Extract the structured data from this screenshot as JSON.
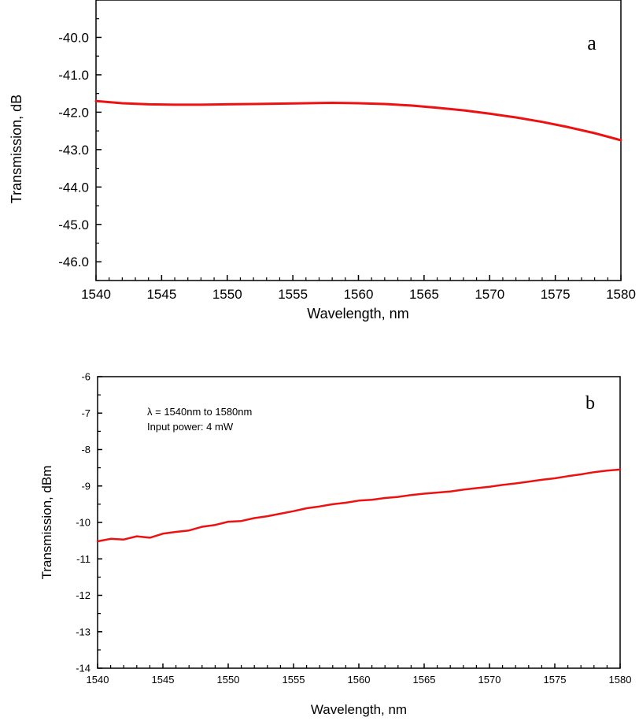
{
  "chart_data": [
    {
      "type": "line",
      "panel_label": "a",
      "xlabel": "Wavelength, nm",
      "ylabel": "Transmission, dB",
      "xlim": [
        1540,
        1580
      ],
      "ylim": [
        -46.5,
        -39.0
      ],
      "xticks": [
        1540,
        1545,
        1550,
        1555,
        1560,
        1565,
        1570,
        1575,
        1580
      ],
      "yticks": [
        -40.0,
        -41.0,
        -42.0,
        -43.0,
        -44.0,
        -45.0,
        -46.0
      ],
      "ytick_labels": [
        "-40.0",
        "-41.0",
        "-42.0",
        "-43.0",
        "-44.0",
        "-45.0",
        "-46.0"
      ],
      "color": "#ee1111",
      "x": [
        1540,
        1542,
        1544,
        1546,
        1548,
        1550,
        1552,
        1554,
        1556,
        1558,
        1560,
        1562,
        1564,
        1566,
        1568,
        1570,
        1572,
        1574,
        1576,
        1578,
        1580
      ],
      "y": [
        -41.7,
        -41.76,
        -41.79,
        -41.8,
        -41.8,
        -41.79,
        -41.78,
        -41.77,
        -41.76,
        -41.75,
        -41.76,
        -41.78,
        -41.82,
        -41.88,
        -41.95,
        -42.04,
        -42.14,
        -42.26,
        -42.4,
        -42.56,
        -42.75
      ]
    },
    {
      "type": "line",
      "panel_label": "b",
      "xlabel": "Wavelength, nm",
      "ylabel": "Transmission, dBm",
      "xlim": [
        1540,
        1580
      ],
      "ylim": [
        -14,
        -6
      ],
      "xticks": [
        1540,
        1545,
        1550,
        1555,
        1560,
        1565,
        1570,
        1575,
        1580
      ],
      "yticks": [
        -6,
        -7,
        -8,
        -9,
        -10,
        -11,
        -12,
        -13,
        -14
      ],
      "ytick_labels": [
        "-6",
        "-7",
        "-8",
        "-9",
        "-10",
        "-11",
        "-12",
        "-13",
        "-14"
      ],
      "annotations": [
        "λ = 1540nm to 1580nm",
        "Input power: 4 mW"
      ],
      "color": "#ee1111",
      "x": [
        1540,
        1541,
        1542,
        1543,
        1544,
        1545,
        1546,
        1547,
        1548,
        1549,
        1550,
        1551,
        1552,
        1553,
        1554,
        1555,
        1556,
        1557,
        1558,
        1559,
        1560,
        1561,
        1562,
        1563,
        1564,
        1565,
        1566,
        1567,
        1568,
        1569,
        1570,
        1571,
        1572,
        1573,
        1574,
        1575,
        1576,
        1577,
        1578,
        1579,
        1580
      ],
      "y": [
        -10.52,
        -10.45,
        -10.47,
        -10.38,
        -10.42,
        -10.31,
        -10.26,
        -10.22,
        -10.12,
        -10.07,
        -9.98,
        -9.96,
        -9.88,
        -9.83,
        -9.76,
        -9.69,
        -9.61,
        -9.56,
        -9.5,
        -9.46,
        -9.4,
        -9.38,
        -9.33,
        -9.3,
        -9.25,
        -9.21,
        -9.18,
        -9.15,
        -9.1,
        -9.06,
        -9.02,
        -8.97,
        -8.93,
        -8.88,
        -8.83,
        -8.79,
        -8.73,
        -8.68,
        -8.62,
        -8.58,
        -8.55
      ]
    }
  ]
}
